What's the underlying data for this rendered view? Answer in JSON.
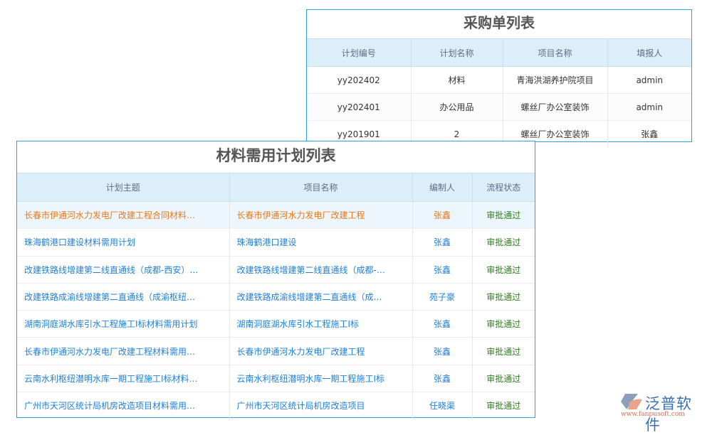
{
  "purchase_list": {
    "title": "采购单列表",
    "columns": [
      "计划编号",
      "计划名称",
      "项目名称",
      "填报人"
    ],
    "rows": [
      [
        "yy202402",
        "材料",
        "青海洪湖养护院项目",
        "admin"
      ],
      [
        "yy202401",
        "办公用品",
        "螺丝厂办公室装饰",
        "admin"
      ],
      [
        "yy201901",
        "2",
        "螺丝厂办公室装饰",
        "张鑫"
      ]
    ]
  },
  "material_plan_list": {
    "title": "材料需用计划列表",
    "columns": [
      "计划主题",
      "项目名称",
      "编制人",
      "流程状态"
    ],
    "rows": [
      [
        "长春市伊通河水力发电厂改建工程合同材料…",
        "长春市伊通河水力发电厂改建工程",
        "张鑫",
        "审批通过"
      ],
      [
        "珠海鹤港口建设材料需用计划",
        "珠海鹤港口建设",
        "张鑫",
        "审批通过"
      ],
      [
        "改建铁路线增建第二线直通线（成都-西安）…",
        "改建铁路线增建第二线直通线（成都-…",
        "张鑫",
        "审批通过"
      ],
      [
        "改建铁路成渝线增建第二直通线（成渝枢纽…",
        "改建铁路成渝线增建第二直通线（成…",
        "苑子豪",
        "审批通过"
      ],
      [
        "湖南洞庭湖水库引水工程施工I标材料需用计划",
        "湖南洞庭湖水库引水工程施工I标",
        "张鑫",
        "审批通过"
      ],
      [
        "长春市伊通河水力发电厂改建工程材料需用…",
        "长春市伊通河水力发电厂改建工程",
        "张鑫",
        "审批通过"
      ],
      [
        "云南水利枢纽潜明水库一期工程施工I标材料…",
        "云南水利枢纽潜明水库一期工程施工I标",
        "张鑫",
        "审批通过"
      ],
      [
        "广州市天河区统计局机房改造项目材料需用…",
        "广州市天河区统计局机房改造项目",
        "任晓渠",
        "审批通过"
      ]
    ]
  },
  "logo": {
    "name": "泛普软件",
    "url": "www.fanpusoft.com"
  },
  "colors": {
    "border": "#29a3e0",
    "header_bg": "#ddeefb",
    "link": "#1f7fd8",
    "highlight": "#e47a1a",
    "status": "#2e7d1e"
  }
}
